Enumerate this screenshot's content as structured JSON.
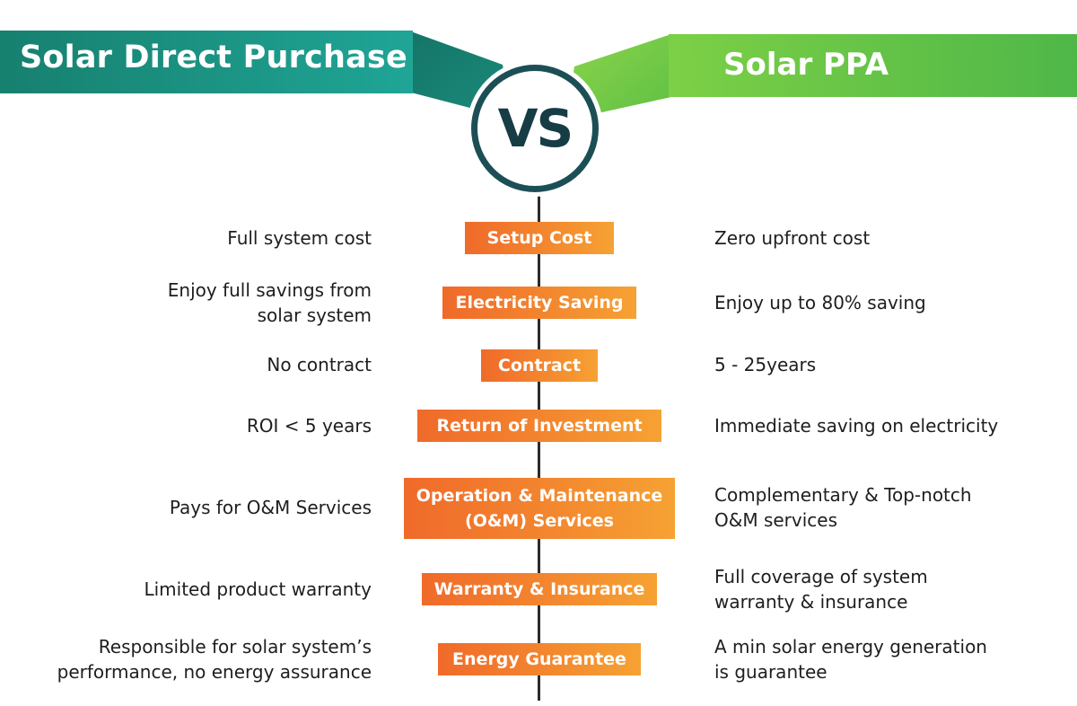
{
  "header": {
    "left_title": "Solar Direct Purchase",
    "right_title": "Solar PPA",
    "vs_label": "VS",
    "left_color": "#1a9a8c",
    "right_color": "#5cc04a"
  },
  "badge_color": "#f07a2e",
  "rows": [
    {
      "category": "Setup Cost",
      "left": "Full system cost",
      "right": "Zero upfront cost"
    },
    {
      "category": "Electricity Saving",
      "left": "Enjoy full savings from\nsolar system",
      "right": "Enjoy up to 80% saving"
    },
    {
      "category": "Contract",
      "left": "No contract",
      "right": "5 - 25years"
    },
    {
      "category": "Return of Investment",
      "left": "ROI < 5 years",
      "right": "Immediate saving on electricity"
    },
    {
      "category": "Operation & Maintenance\n(O&M) Services",
      "left": "Pays for O&M Services",
      "right": "Complementary & Top-notch\nO&M services"
    },
    {
      "category": "Warranty & Insurance",
      "left": "Limited product warranty",
      "right": "Full coverage of system\nwarranty & insurance"
    },
    {
      "category": "Energy Guarantee",
      "left": "Responsible for solar system’s\nperformance, no energy assurance",
      "right": "A min solar energy generation\nis guarantee"
    }
  ]
}
